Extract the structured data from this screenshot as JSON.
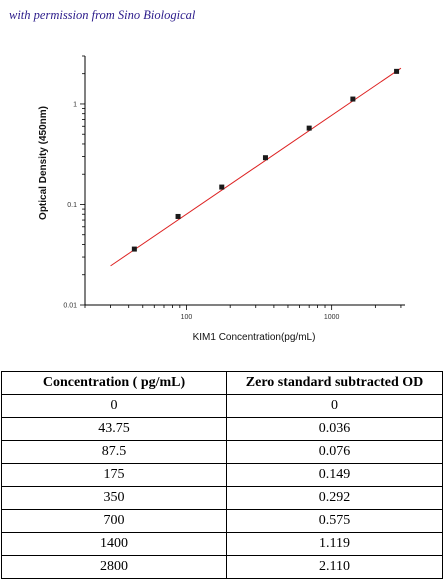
{
  "note": "with permission from Sino Biological",
  "chart_data": {
    "type": "scatter",
    "xlabel": "KIM1  Concentration(pg/mL)",
    "ylabel": "Optical Density (450nm)",
    "xscale": "log",
    "yscale": "log",
    "xlim": [
      20,
      3200
    ],
    "ylim": [
      0.01,
      3.0
    ],
    "x_ticks": [
      {
        "value": 100,
        "label": "100"
      },
      {
        "value": 1000,
        "label": "1000"
      }
    ],
    "y_ticks": [
      {
        "value": 0.01,
        "label": "0.01"
      },
      {
        "value": 0.1,
        "label": "0.1"
      },
      {
        "value": 1,
        "label": "1"
      }
    ],
    "series": [
      {
        "x": [
          43.75,
          87.5,
          175,
          350,
          700,
          1400,
          2800
        ],
        "y": [
          0.036,
          0.076,
          0.149,
          0.292,
          0.575,
          1.119,
          2.11
        ],
        "color": "#1a1a1a"
      }
    ],
    "fit_line": {
      "x": [
        30,
        3000
      ],
      "y": [
        0.0245,
        2.27
      ],
      "color": "#dd2222"
    }
  },
  "table": {
    "headers": [
      "Concentration ( pg/mL)",
      "Zero standard subtracted OD"
    ],
    "rows": [
      [
        "0",
        "0"
      ],
      [
        "43.75",
        "0.036"
      ],
      [
        "87.5",
        "0.076"
      ],
      [
        "175",
        "0.149"
      ],
      [
        "350",
        "0.292"
      ],
      [
        "700",
        "0.575"
      ],
      [
        "1400",
        "1.119"
      ],
      [
        "2800",
        "2.110"
      ]
    ]
  }
}
